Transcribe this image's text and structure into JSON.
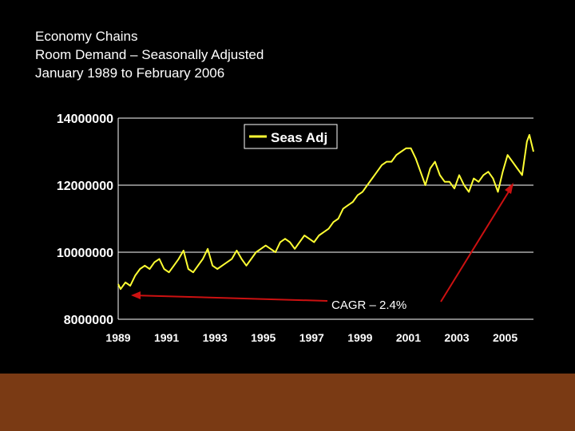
{
  "title_lines": [
    "Economy Chains",
    "Room Demand – Seasonally Adjusted",
    "January 1989 to February 2006"
  ],
  "colors": {
    "background": "#000000",
    "text": "#ffffff",
    "series": "#ffff33",
    "arrow": "#cc1111",
    "footer": "#7a3a14",
    "gridline": "#ffffff"
  },
  "chart_data": {
    "type": "line",
    "title": "",
    "xlabel": "",
    "ylabel": "",
    "xlim": [
      1989.0,
      2006.17
    ],
    "ylim": [
      8000000,
      14000000
    ],
    "y_ticks": [
      8000000,
      10000000,
      12000000,
      14000000
    ],
    "y_tick_labels": [
      "8000000",
      "10000000",
      "12000000",
      "14000000"
    ],
    "x_ticks": [
      1989,
      1991,
      1993,
      1995,
      1997,
      1999,
      2001,
      2003,
      2005
    ],
    "x_tick_labels": [
      "1989",
      "1991",
      "1993",
      "1995",
      "1997",
      "1999",
      "2001",
      "2003",
      "2005"
    ],
    "grid": true,
    "legend": {
      "position": "top-center",
      "entries": [
        "Seas Adj"
      ]
    },
    "series": [
      {
        "name": "Seas Adj",
        "x": [
          1989.0,
          1989.1,
          1989.3,
          1989.5,
          1989.7,
          1989.9,
          1990.1,
          1990.3,
          1990.5,
          1990.7,
          1990.9,
          1991.1,
          1991.3,
          1991.5,
          1991.7,
          1991.9,
          1992.1,
          1992.3,
          1992.5,
          1992.7,
          1992.9,
          1993.1,
          1993.3,
          1993.5,
          1993.7,
          1993.9,
          1994.1,
          1994.3,
          1994.5,
          1994.7,
          1994.9,
          1995.1,
          1995.3,
          1995.5,
          1995.7,
          1995.9,
          1996.1,
          1996.3,
          1996.5,
          1996.7,
          1996.9,
          1997.1,
          1997.3,
          1997.5,
          1997.7,
          1997.9,
          1998.1,
          1998.3,
          1998.5,
          1998.7,
          1998.9,
          1999.1,
          1999.3,
          1999.5,
          1999.7,
          1999.9,
          2000.1,
          2000.3,
          2000.5,
          2000.7,
          2000.9,
          2001.1,
          2001.3,
          2001.5,
          2001.7,
          2001.9,
          2002.1,
          2002.3,
          2002.5,
          2002.7,
          2002.9,
          2003.1,
          2003.3,
          2003.5,
          2003.7,
          2003.9,
          2004.1,
          2004.3,
          2004.5,
          2004.7,
          2004.9,
          2005.1,
          2005.3,
          2005.5,
          2005.7,
          2005.9,
          2006.0,
          2006.17
        ],
        "values": [
          9050000,
          8900000,
          9100000,
          9000000,
          9300000,
          9500000,
          9600000,
          9500000,
          9700000,
          9800000,
          9500000,
          9400000,
          9600000,
          9800000,
          10050000,
          9500000,
          9400000,
          9600000,
          9800000,
          10100000,
          9600000,
          9500000,
          9600000,
          9700000,
          9800000,
          10050000,
          9800000,
          9600000,
          9800000,
          10000000,
          10100000,
          10200000,
          10100000,
          10000000,
          10300000,
          10400000,
          10300000,
          10100000,
          10300000,
          10500000,
          10400000,
          10300000,
          10500000,
          10600000,
          10700000,
          10900000,
          11000000,
          11300000,
          11400000,
          11500000,
          11700000,
          11800000,
          12000000,
          12200000,
          12400000,
          12600000,
          12700000,
          12700000,
          12900000,
          13000000,
          13100000,
          13100000,
          12800000,
          12400000,
          12000000,
          12500000,
          12700000,
          12300000,
          12100000,
          12100000,
          11900000,
          12300000,
          12000000,
          11800000,
          12200000,
          12100000,
          12300000,
          12400000,
          12200000,
          11800000,
          12400000,
          12900000,
          12700000,
          12500000,
          12300000,
          13300000,
          13500000,
          13000000
        ]
      }
    ],
    "annotations": [
      {
        "text": "CAGR – 2.4%"
      }
    ]
  }
}
